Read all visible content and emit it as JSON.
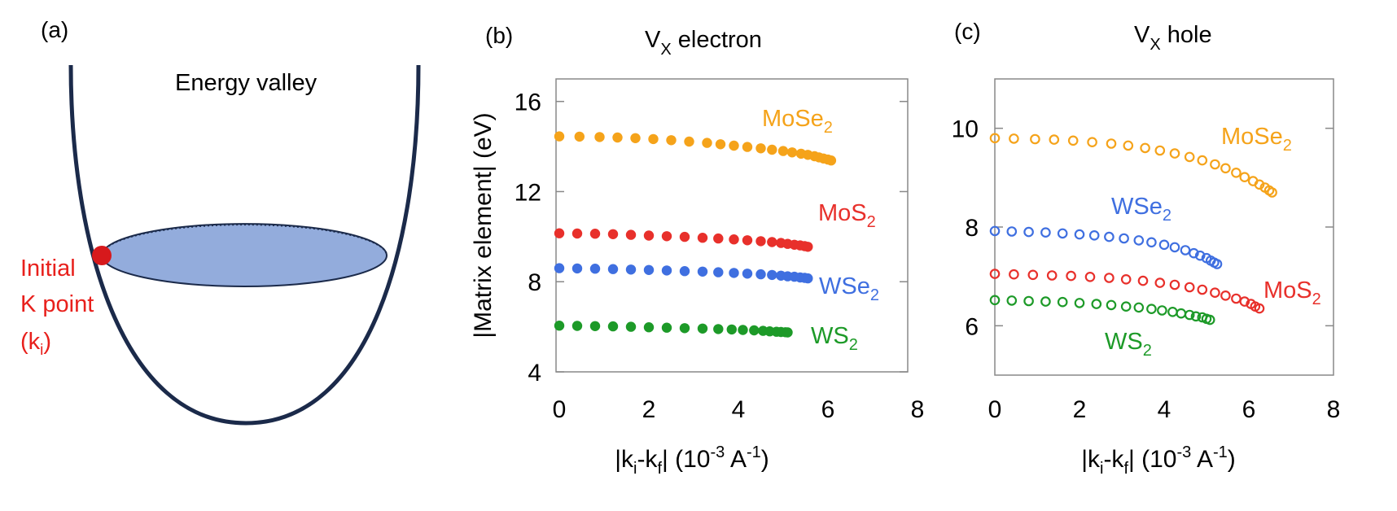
{
  "panel_a": {
    "tag": "(a)",
    "title": "Energy valley",
    "point_label_lines": [
      "Initial",
      "K point",
      "(k",
      "i",
      ")"
    ]
  },
  "colors": {
    "MoSe2": "#f5a31a",
    "MoS2": "#e8302b",
    "WSe2": "#3f6fe0",
    "WS2": "#1d9a28",
    "valley_curve": "#1b2a4a",
    "ellipse_fill": "#93acdc",
    "initial_point": "#d7191c",
    "label_red": "#e8201c"
  },
  "chart_data": [
    {
      "type": "scatter",
      "panel": "(b)",
      "title": "V",
      "title_sub": "X",
      "title_rest": " electron",
      "ylabel": "|Matrix element| (eV)",
      "xlabel_parts": [
        "|k",
        "i",
        "-k",
        "f",
        "| (10",
        "-3",
        " A",
        "-1",
        ")"
      ],
      "xlim": [
        0,
        8
      ],
      "ylim": [
        4,
        17
      ],
      "xticks": [
        0,
        2,
        4,
        6,
        8
      ],
      "yticks": [
        4,
        8,
        12,
        16
      ],
      "marker": "filled",
      "series": [
        {
          "name": "MoSe",
          "sub": "2",
          "key": "MoSe2",
          "x": [
            0,
            0.45,
            0.9,
            1.3,
            1.7,
            2.1,
            2.5,
            2.9,
            3.3,
            3.6,
            3.9,
            4.2,
            4.5,
            4.75,
            5.0,
            5.2,
            5.4,
            5.55,
            5.7,
            5.8,
            5.9,
            6.0,
            6.07
          ],
          "y": [
            14.45,
            14.44,
            14.42,
            14.4,
            14.37,
            14.33,
            14.28,
            14.22,
            14.16,
            14.1,
            14.04,
            13.98,
            13.92,
            13.86,
            13.8,
            13.74,
            13.68,
            13.63,
            13.57,
            13.52,
            13.47,
            13.42,
            13.38
          ]
        },
        {
          "name": "MoS",
          "sub": "2",
          "key": "MoS2",
          "x": [
            0,
            0.4,
            0.8,
            1.2,
            1.6,
            2.0,
            2.4,
            2.8,
            3.2,
            3.55,
            3.9,
            4.2,
            4.5,
            4.75,
            4.95,
            5.1,
            5.25,
            5.38,
            5.48,
            5.55
          ],
          "y": [
            10.15,
            10.14,
            10.13,
            10.11,
            10.08,
            10.05,
            10.02,
            9.99,
            9.95,
            9.92,
            9.88,
            9.84,
            9.8,
            9.76,
            9.72,
            9.68,
            9.64,
            9.61,
            9.58,
            9.55
          ]
        },
        {
          "name": "WSe",
          "sub": "2",
          "key": "WSe2",
          "x": [
            0,
            0.4,
            0.8,
            1.2,
            1.6,
            2.0,
            2.4,
            2.8,
            3.2,
            3.55,
            3.9,
            4.2,
            4.5,
            4.75,
            4.95,
            5.1,
            5.25,
            5.38,
            5.48,
            5.55
          ],
          "y": [
            8.6,
            8.59,
            8.58,
            8.56,
            8.54,
            8.52,
            8.5,
            8.47,
            8.45,
            8.42,
            8.39,
            8.36,
            8.33,
            8.3,
            8.27,
            8.24,
            8.22,
            8.19,
            8.17,
            8.15
          ]
        },
        {
          "name": "WS",
          "sub": "2",
          "key": "WS2",
          "x": [
            0,
            0.4,
            0.8,
            1.2,
            1.6,
            2.0,
            2.4,
            2.8,
            3.2,
            3.55,
            3.85,
            4.1,
            4.35,
            4.55,
            4.7,
            4.85,
            4.95,
            5.05,
            5.1
          ],
          "y": [
            6.05,
            6.04,
            6.03,
            6.02,
            6.0,
            5.98,
            5.96,
            5.94,
            5.92,
            5.9,
            5.88,
            5.86,
            5.84,
            5.82,
            5.8,
            5.78,
            5.77,
            5.76,
            5.75
          ]
        }
      ]
    },
    {
      "type": "scatter",
      "panel": "(c)",
      "title": "V",
      "title_sub": "X",
      "title_rest": " hole",
      "ylabel": "",
      "xlabel_parts": [
        "|k",
        "i",
        "-k",
        "f",
        "| (10",
        "-3",
        " A",
        "-1",
        ")"
      ],
      "xlim": [
        0,
        8
      ],
      "ylim": [
        5,
        11
      ],
      "xticks": [
        0,
        2,
        4,
        6,
        8
      ],
      "yticks": [
        6,
        8,
        10
      ],
      "marker": "open",
      "series": [
        {
          "name": "MoSe",
          "sub": "2",
          "key": "MoSe2",
          "x": [
            0,
            0.45,
            0.95,
            1.4,
            1.85,
            2.3,
            2.75,
            3.15,
            3.55,
            3.9,
            4.25,
            4.6,
            4.9,
            5.2,
            5.45,
            5.7,
            5.9,
            6.1,
            6.25,
            6.38,
            6.48,
            6.55
          ],
          "y": [
            9.8,
            9.79,
            9.78,
            9.77,
            9.75,
            9.72,
            9.69,
            9.65,
            9.6,
            9.55,
            9.49,
            9.42,
            9.35,
            9.27,
            9.19,
            9.1,
            9.01,
            8.93,
            8.86,
            8.8,
            8.74,
            8.7
          ]
        },
        {
          "name": "WSe",
          "sub": "2",
          "key": "WSe2",
          "x": [
            0,
            0.4,
            0.8,
            1.2,
            1.6,
            2.0,
            2.35,
            2.7,
            3.05,
            3.4,
            3.7,
            4.0,
            4.25,
            4.5,
            4.7,
            4.85,
            5.0,
            5.1,
            5.18,
            5.25
          ],
          "y": [
            7.92,
            7.91,
            7.9,
            7.89,
            7.87,
            7.85,
            7.83,
            7.8,
            7.77,
            7.73,
            7.69,
            7.64,
            7.59,
            7.53,
            7.47,
            7.42,
            7.37,
            7.32,
            7.28,
            7.25
          ]
        },
        {
          "name": "MoS",
          "sub": "2",
          "key": "MoS2",
          "x": [
            0,
            0.45,
            0.9,
            1.35,
            1.8,
            2.25,
            2.7,
            3.1,
            3.5,
            3.9,
            4.25,
            4.6,
            4.9,
            5.2,
            5.45,
            5.7,
            5.9,
            6.05,
            6.15,
            6.25
          ],
          "y": [
            7.05,
            7.04,
            7.03,
            7.02,
            7.01,
            6.99,
            6.97,
            6.94,
            6.91,
            6.87,
            6.83,
            6.78,
            6.73,
            6.67,
            6.61,
            6.55,
            6.49,
            6.44,
            6.39,
            6.35
          ]
        },
        {
          "name": "WS",
          "sub": "2",
          "key": "WS2",
          "x": [
            0,
            0.4,
            0.8,
            1.2,
            1.6,
            2.0,
            2.4,
            2.75,
            3.1,
            3.4,
            3.7,
            3.95,
            4.2,
            4.4,
            4.6,
            4.75,
            4.9,
            5.0,
            5.08
          ],
          "y": [
            6.52,
            6.51,
            6.5,
            6.49,
            6.48,
            6.46,
            6.44,
            6.42,
            6.39,
            6.37,
            6.34,
            6.31,
            6.28,
            6.25,
            6.22,
            6.19,
            6.17,
            6.14,
            6.12
          ]
        }
      ]
    }
  ]
}
